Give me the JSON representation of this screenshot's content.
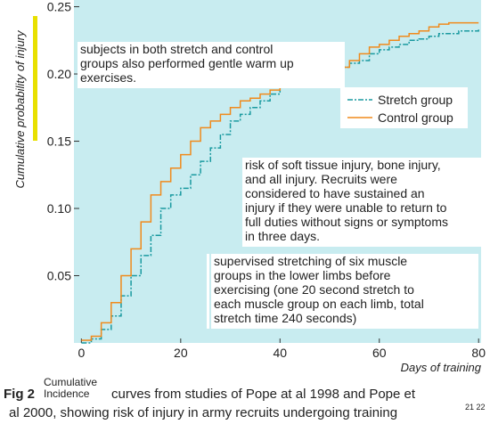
{
  "chart_data": {
    "type": "step",
    "y_label": "Cumulative probability of injury",
    "x_label": "Days of training",
    "x": [
      0,
      2,
      4,
      6,
      8,
      10,
      12,
      14,
      16,
      18,
      20,
      22,
      24,
      26,
      28,
      30,
      32,
      34,
      36,
      38,
      40,
      42,
      44,
      46,
      48,
      50,
      52,
      54,
      56,
      58,
      60,
      62,
      64,
      66,
      68,
      70,
      72,
      74,
      76,
      78,
      80
    ],
    "series": [
      {
        "name": "Stretch group",
        "color": "#1a9aa0",
        "dash": "6,2,2,2",
        "values": [
          0,
          0.003,
          0.01,
          0.02,
          0.035,
          0.05,
          0.065,
          0.08,
          0.1,
          0.11,
          0.115,
          0.125,
          0.135,
          0.145,
          0.155,
          0.165,
          0.17,
          0.175,
          0.18,
          0.185,
          0.19,
          0.19,
          0.19,
          0.192,
          0.195,
          0.2,
          0.205,
          0.208,
          0.21,
          0.215,
          0.218,
          0.22,
          0.222,
          0.225,
          0.226,
          0.228,
          0.23,
          0.23,
          0.232,
          0.232,
          0.233
        ]
      },
      {
        "name": "Control group",
        "color": "#f08a1c",
        "dash": "",
        "values": [
          0.002,
          0.005,
          0.015,
          0.03,
          0.05,
          0.07,
          0.09,
          0.11,
          0.12,
          0.13,
          0.14,
          0.15,
          0.16,
          0.165,
          0.17,
          0.175,
          0.18,
          0.182,
          0.185,
          0.188,
          0.19,
          0.19,
          0.19,
          0.192,
          0.195,
          0.2,
          0.205,
          0.21,
          0.215,
          0.22,
          0.222,
          0.225,
          0.228,
          0.23,
          0.232,
          0.235,
          0.237,
          0.238,
          0.238,
          0.238,
          0.238
        ]
      }
    ],
    "xlim": [
      -1.5,
      80.5
    ],
    "ylim": [
      0,
      0.255
    ],
    "xticks": [
      0,
      20,
      40,
      60,
      80
    ],
    "yticks": [
      0.05,
      {
        "value": 0.1,
        "label": "0.10"
      },
      0.15,
      {
        "value": 0.2,
        "label": "0.20"
      },
      0.25
    ],
    "background": "#c8ecf0",
    "legend": "right",
    "annotations": [
      {
        "lines": [
          "subjects in both stretch and control",
          "groups also performed gentle warm up",
          "exercises."
        ]
      },
      {
        "lines": [
          "risk of soft tissue injury, bone injury,",
          "and all injury. Recruits were",
          "considered to have sustained an",
          "injury if they were unable to return to",
          "full duties without signs or symptoms",
          "in three days."
        ]
      },
      {
        "lines": [
          "supervised stretching of six muscle",
          "groups in the lower limbs before",
          "exercising (one 20 second stretch to",
          "each muscle group on each limb, total",
          "stretch time 240 seconds)"
        ]
      }
    ]
  },
  "caption": {
    "fig_label": "Fig 2",
    "small_lines": [
      "Cumulative",
      "Incidence"
    ],
    "lines": [
      "curves from studies of Pope at al 1998 and Pope et",
      "al 2000, showing risk of injury in army recruits undergoing training"
    ],
    "refs": "21 22"
  }
}
